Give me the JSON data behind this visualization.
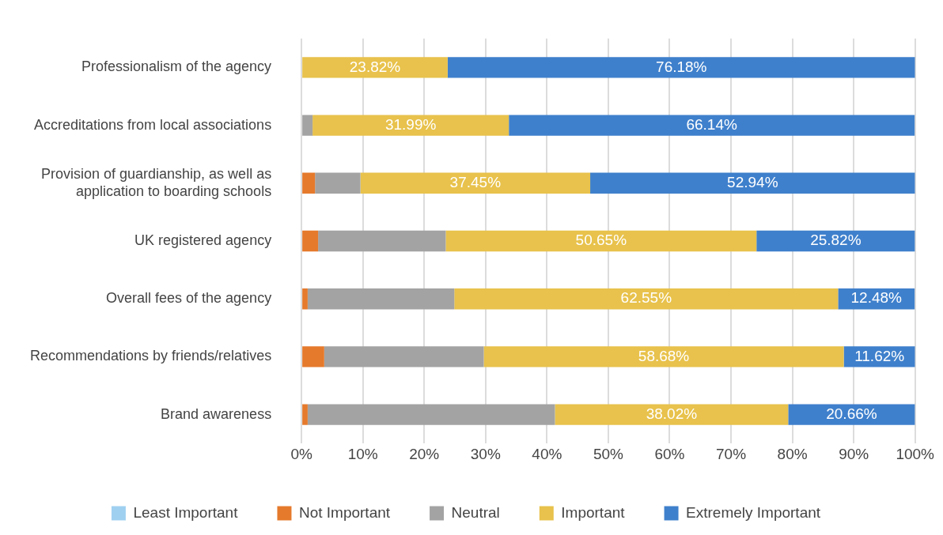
{
  "chart_data": {
    "type": "bar",
    "orientation": "horizontal",
    "stacked": true,
    "grid": "x",
    "legend": "bottom",
    "categories": [
      "Professionalism of the agency",
      "Accreditations from local associations",
      "Provision of guardianship, as well as application to boarding schools",
      "UK registered agency",
      "Overall fees of the agency",
      "Recommendations by friends/relatives",
      "Brand awareness"
    ],
    "xlim": [
      0,
      100
    ],
    "xticks": [
      {
        "value": 0,
        "label": "0%"
      },
      {
        "value": 10,
        "label": "10%"
      },
      {
        "value": 20,
        "label": "20%"
      },
      {
        "value": 30,
        "label": "30%"
      },
      {
        "value": 40,
        "label": "40%"
      },
      {
        "value": 50,
        "label": "50%"
      },
      {
        "value": 60,
        "label": "60%"
      },
      {
        "value": 70,
        "label": "70%"
      },
      {
        "value": 80,
        "label": "80%"
      },
      {
        "value": 90,
        "label": "90%"
      },
      {
        "value": 100,
        "label": "100%"
      }
    ],
    "series": [
      {
        "name": "Least Important",
        "color": "#9fd0f0",
        "values": [
          0,
          0,
          0,
          0,
          0,
          0,
          0
        ]
      },
      {
        "name": "Not Important",
        "color": "#e57a2c",
        "values": [
          0,
          0,
          2.2,
          2.7,
          1,
          3.7,
          1
        ]
      },
      {
        "name": "Neutral",
        "color": "#a3a3a3",
        "values": [
          0,
          1.8,
          7.4,
          20.8,
          23.9,
          26,
          40.3
        ]
      },
      {
        "name": "Important",
        "color": "#e8c24c",
        "values": [
          23.82,
          31.99,
          37.45,
          50.65,
          62.55,
          58.68,
          38.02
        ],
        "value_labels": [
          "23.82%",
          "31.99%",
          "37.45%",
          "50.65%",
          "62.55%",
          "58.68%",
          "38.02%"
        ]
      },
      {
        "name": "Extremely Important",
        "color": "#3f80cc",
        "values": [
          76.18,
          66.14,
          52.94,
          25.82,
          12.48,
          11.62,
          20.66
        ],
        "value_labels": [
          "76.18%",
          "66.14%",
          "52.94%",
          "25.82%",
          "12.48%",
          "11.62%",
          "20.66%"
        ]
      }
    ]
  }
}
